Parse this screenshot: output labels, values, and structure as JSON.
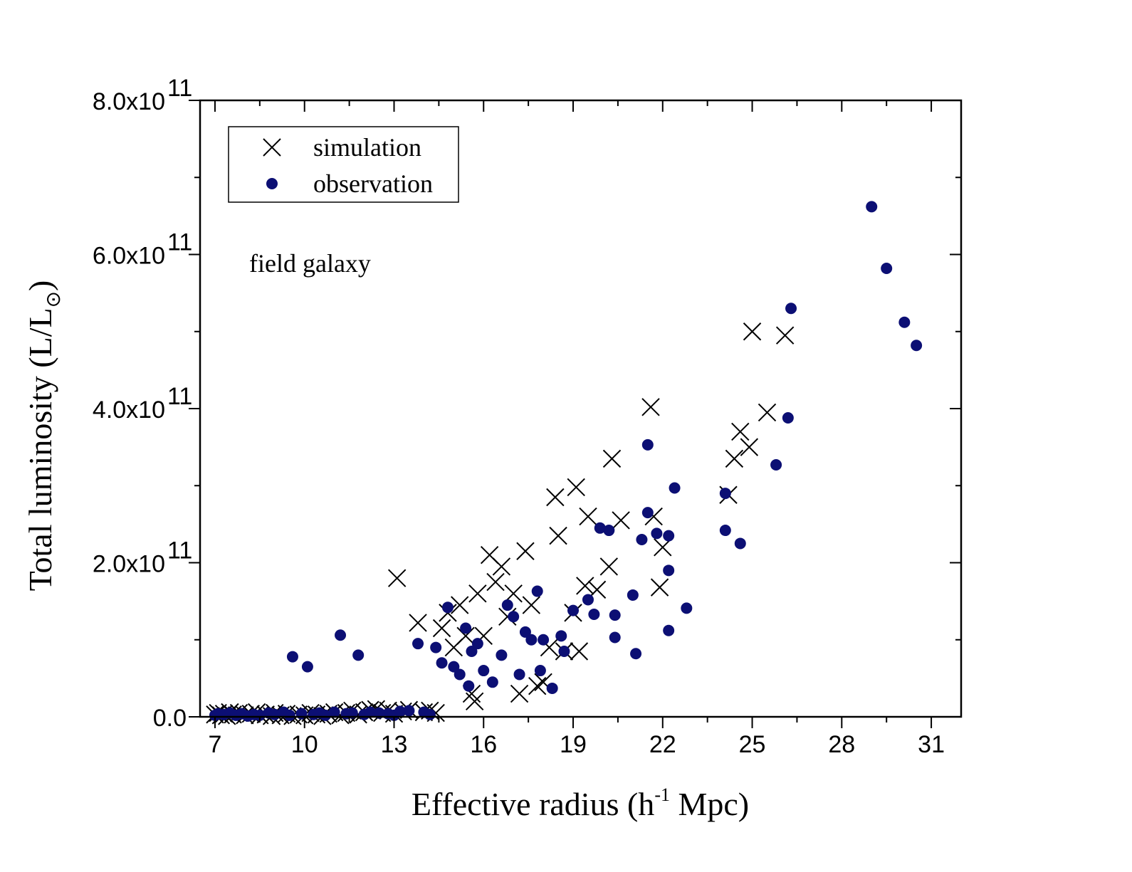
{
  "chart_data": {
    "type": "scatter",
    "xlabel": {
      "prefix": "Effective radius (h",
      "sup": "-1",
      "suffix": " Mpc)"
    },
    "ylabel": {
      "prefix": "Total luminosity (L/L",
      "sub": "⊙",
      "suffix": ")"
    },
    "xlim": [
      6.5,
      32
    ],
    "ylim": [
      0,
      800000000000.0
    ],
    "x_ticks": [
      7,
      10,
      13,
      16,
      19,
      22,
      25,
      28,
      31
    ],
    "y_ticks": [
      {
        "value": 0,
        "mantissa": "0.0",
        "exp": ""
      },
      {
        "value": 200000000000.0,
        "mantissa": "2.0x10",
        "exp": "11"
      },
      {
        "value": 400000000000.0,
        "mantissa": "4.0x10",
        "exp": "11"
      },
      {
        "value": 600000000000.0,
        "mantissa": "6.0x10",
        "exp": "11"
      },
      {
        "value": 800000000000.0,
        "mantissa": "8.0x10",
        "exp": "11"
      }
    ],
    "annotation": "field galaxy",
    "legend_position": "top-left",
    "series": [
      {
        "name": "simulation",
        "marker": "cross",
        "color": "#000000",
        "points": [
          [
            7.0,
            3000000000.0
          ],
          [
            7.1,
            5000000000.0
          ],
          [
            7.2,
            2000000000.0
          ],
          [
            7.3,
            4000000000.0
          ],
          [
            7.4,
            1000000000.0
          ],
          [
            7.5,
            6000000000.0
          ],
          [
            7.6,
            3000000000.0
          ],
          [
            7.8,
            5000000000.0
          ],
          [
            8.0,
            2000000000.0
          ],
          [
            8.2,
            4000000000.0
          ],
          [
            8.4,
            6000000000.0
          ],
          [
            8.5,
            2000000000.0
          ],
          [
            8.7,
            3000000000.0
          ],
          [
            8.9,
            1000000000.0
          ],
          [
            9.0,
            5000000000.0
          ],
          [
            9.2,
            2000000000.0
          ],
          [
            9.4,
            4000000000.0
          ],
          [
            9.6,
            1000000000.0
          ],
          [
            9.8,
            3000000000.0
          ],
          [
            10.0,
            2000000000.0
          ],
          [
            10.2,
            5000000000.0
          ],
          [
            10.4,
            3000000000.0
          ],
          [
            10.6,
            1000000000.0
          ],
          [
            10.8,
            4000000000.0
          ],
          [
            11.0,
            6000000000.0
          ],
          [
            11.2,
            2000000000.0
          ],
          [
            11.4,
            5000000000.0
          ],
          [
            11.6,
            8000000000.0
          ],
          [
            11.8,
            3000000000.0
          ],
          [
            12.0,
            6000000000.0
          ],
          [
            12.2,
            9000000000.0
          ],
          [
            12.4,
            10000000000.0
          ],
          [
            12.6,
            5000000000.0
          ],
          [
            12.8,
            8000000000.0
          ],
          [
            13.0,
            4000000000.0
          ],
          [
            13.1,
            180000000000.0
          ],
          [
            13.3,
            7000000000.0
          ],
          [
            13.5,
            9000000000.0
          ],
          [
            13.8,
            122000000000.0
          ],
          [
            14.0,
            6000000000.0
          ],
          [
            14.2,
            8000000000.0
          ],
          [
            14.4,
            5000000000.0
          ],
          [
            14.6,
            115000000000.0
          ],
          [
            14.8,
            135000000000.0
          ],
          [
            15.0,
            90000000000.0
          ],
          [
            15.2,
            145000000000.0
          ],
          [
            15.4,
            105000000000.0
          ],
          [
            15.6,
            30000000000.0
          ],
          [
            15.7,
            20000000000.0
          ],
          [
            15.8,
            160000000000.0
          ],
          [
            16.0,
            105000000000.0
          ],
          [
            16.2,
            210000000000.0
          ],
          [
            16.4,
            175000000000.0
          ],
          [
            16.6,
            195000000000.0
          ],
          [
            16.8,
            130000000000.0
          ],
          [
            17.0,
            160000000000.0
          ],
          [
            17.2,
            30000000000.0
          ],
          [
            17.4,
            215000000000.0
          ],
          [
            17.6,
            145000000000.0
          ],
          [
            17.8,
            40000000000.0
          ],
          [
            18.0,
            45000000000.0
          ],
          [
            18.2,
            90000000000.0
          ],
          [
            18.4,
            285000000000.0
          ],
          [
            18.5,
            235000000000.0
          ],
          [
            18.7,
            85000000000.0
          ],
          [
            19.0,
            135000000000.0
          ],
          [
            19.1,
            298000000000.0
          ],
          [
            19.2,
            85000000000.0
          ],
          [
            19.4,
            170000000000.0
          ],
          [
            19.5,
            260000000000.0
          ],
          [
            19.8,
            165000000000.0
          ],
          [
            20.2,
            195000000000.0
          ],
          [
            20.3,
            335000000000.0
          ],
          [
            20.6,
            255000000000.0
          ],
          [
            21.6,
            402000000000.0
          ],
          [
            21.7,
            260000000000.0
          ],
          [
            21.9,
            168000000000.0
          ],
          [
            22.0,
            220000000000.0
          ],
          [
            24.2,
            288000000000.0
          ],
          [
            24.4,
            335000000000.0
          ],
          [
            24.6,
            370000000000.0
          ],
          [
            24.9,
            350000000000.0
          ],
          [
            25.0,
            500000000000.0
          ],
          [
            25.5,
            395000000000.0
          ],
          [
            26.1,
            495000000000.0
          ]
        ]
      },
      {
        "name": "observation",
        "marker": "dot",
        "color": "#0c0f74",
        "points": [
          [
            7.0,
            2000000000.0
          ],
          [
            7.1,
            4000000000.0
          ],
          [
            7.3,
            3000000000.0
          ],
          [
            7.5,
            5000000000.0
          ],
          [
            7.7,
            2000000000.0
          ],
          [
            7.9,
            4000000000.0
          ],
          [
            8.1,
            1000000000.0
          ],
          [
            8.3,
            3000000000.0
          ],
          [
            8.5,
            2000000000.0
          ],
          [
            8.8,
            5000000000.0
          ],
          [
            9.0,
            3000000000.0
          ],
          [
            9.3,
            6000000000.0
          ],
          [
            9.5,
            2000000000.0
          ],
          [
            9.6,
            78000000000.0
          ],
          [
            9.9,
            4000000000.0
          ],
          [
            10.1,
            65000000000.0
          ],
          [
            10.3,
            3000000000.0
          ],
          [
            10.5,
            5000000000.0
          ],
          [
            10.7,
            2000000000.0
          ],
          [
            11.0,
            6000000000.0
          ],
          [
            11.2,
            106000000000.0
          ],
          [
            11.4,
            4000000000.0
          ],
          [
            11.6,
            5000000000.0
          ],
          [
            11.8,
            80000000000.0
          ],
          [
            12.0,
            3000000000.0
          ],
          [
            12.2,
            6000000000.0
          ],
          [
            12.5,
            5000000000.0
          ],
          [
            12.8,
            4000000000.0
          ],
          [
            13.0,
            2000000000.0
          ],
          [
            13.2,
            7000000000.0
          ],
          [
            13.5,
            8000000000.0
          ],
          [
            13.8,
            95000000000.0
          ],
          [
            14.0,
            6000000000.0
          ],
          [
            14.2,
            3000000000.0
          ],
          [
            14.4,
            90000000000.0
          ],
          [
            14.6,
            70000000000.0
          ],
          [
            14.8,
            142000000000.0
          ],
          [
            15.0,
            65000000000.0
          ],
          [
            15.2,
            55000000000.0
          ],
          [
            15.4,
            115000000000.0
          ],
          [
            15.5,
            40000000000.0
          ],
          [
            15.6,
            85000000000.0
          ],
          [
            15.8,
            95000000000.0
          ],
          [
            16.0,
            60000000000.0
          ],
          [
            16.3,
            45000000000.0
          ],
          [
            16.6,
            80000000000.0
          ],
          [
            16.8,
            145000000000.0
          ],
          [
            17.0,
            130000000000.0
          ],
          [
            17.2,
            55000000000.0
          ],
          [
            17.4,
            110000000000.0
          ],
          [
            17.6,
            100000000000.0
          ],
          [
            17.8,
            163000000000.0
          ],
          [
            17.9,
            60000000000.0
          ],
          [
            18.0,
            100000000000.0
          ],
          [
            18.3,
            37000000000.0
          ],
          [
            18.6,
            105000000000.0
          ],
          [
            18.7,
            85000000000.0
          ],
          [
            19.0,
            138000000000.0
          ],
          [
            19.5,
            152000000000.0
          ],
          [
            19.7,
            133000000000.0
          ],
          [
            19.9,
            245000000000.0
          ],
          [
            20.2,
            242000000000.0
          ],
          [
            20.4,
            132000000000.0
          ],
          [
            20.4,
            103000000000.0
          ],
          [
            21.0,
            158000000000.0
          ],
          [
            21.1,
            82000000000.0
          ],
          [
            21.3,
            230000000000.0
          ],
          [
            21.5,
            265000000000.0
          ],
          [
            21.5,
            353000000000.0
          ],
          [
            21.8,
            238000000000.0
          ],
          [
            22.2,
            235000000000.0
          ],
          [
            22.2,
            190000000000.0
          ],
          [
            22.2,
            112000000000.0
          ],
          [
            22.4,
            297000000000.0
          ],
          [
            22.8,
            141000000000.0
          ],
          [
            24.1,
            242000000000.0
          ],
          [
            24.1,
            290000000000.0
          ],
          [
            24.6,
            225000000000.0
          ],
          [
            25.8,
            327000000000.0
          ],
          [
            26.2,
            388000000000.0
          ],
          [
            26.3,
            530000000000.0
          ],
          [
            29.0,
            662000000000.0
          ],
          [
            29.5,
            582000000000.0
          ],
          [
            30.1,
            512000000000.0
          ],
          [
            30.5,
            482000000000.0
          ]
        ]
      }
    ]
  }
}
